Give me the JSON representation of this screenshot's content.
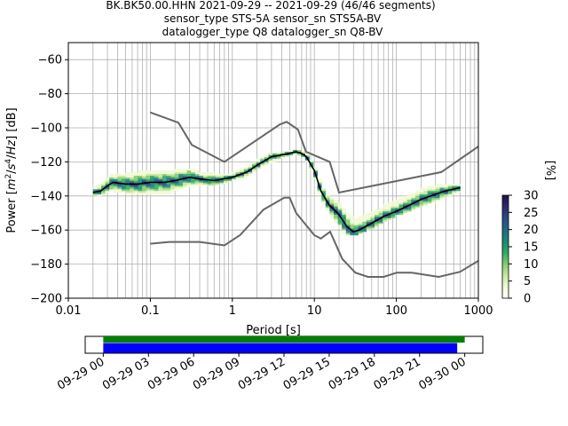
{
  "chart_data": {
    "type": "heatmap",
    "title_lines": [
      "BK.BK50.00.HHN   2021-09-29 -- 2021-09-29  (46/46 segments)",
      "sensor_type STS-5A sensor_sn STS5A-BV",
      "datalogger_type Q8 datalogger_sn Q8-BV"
    ],
    "xlabel": "Period [s]",
    "xscale": "log",
    "xlim": [
      0.01,
      1000
    ],
    "xticks": [
      0.01,
      0.1,
      1,
      10,
      100,
      1000
    ],
    "xtick_labels": [
      "0.01",
      "0.1",
      "1",
      "10",
      "100",
      "1000"
    ],
    "ylim": [
      -200,
      -50
    ],
    "yticks": [
      -200,
      -180,
      -160,
      -140,
      -120,
      -100,
      -80,
      -60
    ],
    "ytick_labels": [
      "−200",
      "−180",
      "−160",
      "−140",
      "−120",
      "−100",
      "−80",
      "−60"
    ],
    "ylabel_parts": [
      "Power [",
      "m",
      "2",
      "/",
      "s",
      "4",
      "/",
      "Hz",
      "] [dB]"
    ],
    "grid": true,
    "colorbar": {
      "label": "[%]",
      "min": 0,
      "max": 30,
      "ticks": [
        0,
        5,
        10,
        15,
        20,
        25,
        30
      ],
      "tick_labels": [
        "0",
        "5",
        "10",
        "15",
        "20",
        "25",
        "30"
      ],
      "colors": [
        "#ffffff",
        "#f2f9d5",
        "#c7e79a",
        "#7fcd6b",
        "#2fa866",
        "#178a75",
        "#1f6a84",
        "#2a4a86",
        "#2c2a6e",
        "#23104a"
      ]
    },
    "nhnm_color": "#666666",
    "nlnm_color": "#666666",
    "mode_color": "#000000",
    "nhnm": [
      [
        0.1,
        -91
      ],
      [
        0.22,
        -97
      ],
      [
        0.32,
        -110
      ],
      [
        0.8,
        -120
      ],
      [
        3.8,
        -98
      ],
      [
        4.6,
        -96.5
      ],
      [
        6.3,
        -101
      ],
      [
        7.9,
        -114
      ],
      [
        15.4,
        -120
      ],
      [
        20,
        -138
      ],
      [
        354,
        -126
      ],
      [
        1000,
        -111
      ]
    ],
    "nlnm": [
      [
        0.1,
        -168
      ],
      [
        0.17,
        -167
      ],
      [
        0.4,
        -167
      ],
      [
        0.8,
        -169
      ],
      [
        1.24,
        -163
      ],
      [
        2.4,
        -148
      ],
      [
        4.3,
        -141
      ],
      [
        5,
        -141
      ],
      [
        6,
        -150
      ],
      [
        10,
        -163
      ],
      [
        12,
        -165
      ],
      [
        15.6,
        -161
      ],
      [
        21.9,
        -177
      ],
      [
        31.6,
        -185
      ],
      [
        45,
        -187.5
      ],
      [
        70,
        -187.5
      ],
      [
        101,
        -185
      ],
      [
        154,
        -185
      ],
      [
        328,
        -187.5
      ],
      [
        600,
        -184.5
      ],
      [
        1000,
        -178
      ]
    ],
    "mode": [
      [
        0.02,
        -138
      ],
      [
        0.025,
        -137
      ],
      [
        0.03,
        -134
      ],
      [
        0.035,
        -132
      ],
      [
        0.05,
        -133
      ],
      [
        0.07,
        -133
      ],
      [
        0.1,
        -132
      ],
      [
        0.15,
        -132
      ],
      [
        0.2,
        -131
      ],
      [
        0.3,
        -129
      ],
      [
        0.4,
        -130
      ],
      [
        0.6,
        -131
      ],
      [
        1,
        -129
      ],
      [
        1.5,
        -126
      ],
      [
        2,
        -122
      ],
      [
        3,
        -117
      ],
      [
        5,
        -115
      ],
      [
        6,
        -114
      ],
      [
        7,
        -115
      ],
      [
        8,
        -117
      ],
      [
        10,
        -125
      ],
      [
        12,
        -137
      ],
      [
        15,
        -145
      ],
      [
        20,
        -151
      ],
      [
        25,
        -158
      ],
      [
        30,
        -161
      ],
      [
        35,
        -160
      ],
      [
        50,
        -156
      ],
      [
        70,
        -152
      ],
      [
        100,
        -149
      ],
      [
        150,
        -145
      ],
      [
        200,
        -142
      ],
      [
        300,
        -139
      ],
      [
        400,
        -137
      ],
      [
        500,
        -136
      ],
      [
        600,
        -135
      ]
    ],
    "spread": [
      {
        "x": [
          0.02,
          0.025,
          0.03,
          0.035,
          0.05,
          0.07,
          0.1,
          0.15,
          0.2,
          0.3,
          0.4,
          0.6,
          1,
          1.5,
          2,
          3,
          5,
          6,
          7,
          8,
          10,
          12,
          15,
          20,
          25,
          30,
          35,
          50,
          70,
          100,
          150,
          200,
          300,
          400,
          500,
          600
        ],
        "upper": [
          -135,
          -133,
          -129,
          -127,
          -127,
          -126,
          -125,
          -126,
          -125,
          -124,
          -126,
          -127,
          -127,
          -123,
          -119,
          -115,
          -114,
          -113,
          -114,
          -115,
          -122,
          -133,
          -140,
          -144,
          -150,
          -153,
          -153,
          -150,
          -146,
          -143,
          -139,
          -136,
          -134,
          -133,
          -133,
          -133
        ],
        "lower": [
          -140,
          -139,
          -137,
          -137,
          -138,
          -139,
          -138,
          -139,
          -137,
          -134,
          -133,
          -134,
          -131,
          -128,
          -124,
          -120,
          -116,
          -115,
          -116,
          -119,
          -128,
          -141,
          -150,
          -158,
          -163,
          -163,
          -162,
          -159,
          -155,
          -151,
          -148,
          -146,
          -143,
          -140,
          -139,
          -137
        ],
        "level": 12
      }
    ],
    "time_axis": {
      "tick_labels": [
        "09-29 00",
        "09-29 03",
        "09-29 06",
        "09-29 09",
        "09-29 12",
        "09-29 15",
        "09-29 18",
        "09-29 21",
        "09-30 00"
      ],
      "tick_hours": [
        0,
        3,
        6,
        9,
        12,
        15,
        18,
        21,
        24
      ],
      "xlim_hours": [
        -1.2,
        25.2
      ],
      "bars": [
        {
          "color": "#008000",
          "start_hours": 0,
          "end_hours": 24.0
        },
        {
          "color": "#0000ff",
          "start_hours": 0,
          "end_hours": 23.5
        }
      ]
    }
  }
}
